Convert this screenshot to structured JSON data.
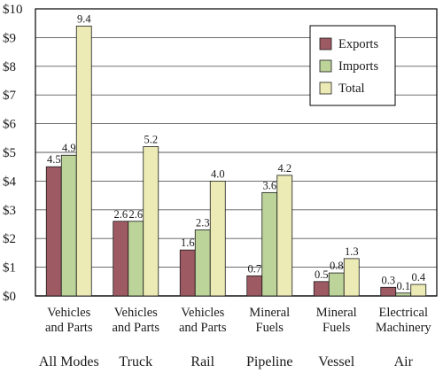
{
  "chart_data": {
    "type": "bar",
    "groups": [
      {
        "mode": "All Modes",
        "category": [
          "Vehicles",
          "and Parts"
        ]
      },
      {
        "mode": "Truck",
        "category": [
          "Vehicles",
          "and Parts"
        ]
      },
      {
        "mode": "Rail",
        "category": [
          "Vehicles",
          "and Parts"
        ]
      },
      {
        "mode": "Pipeline",
        "category": [
          "Mineral",
          "Fuels"
        ]
      },
      {
        "mode": "Vessel",
        "category": [
          "Mineral",
          "Fuels"
        ]
      },
      {
        "mode": "Air",
        "category": [
          "Electrical",
          "Machinery"
        ]
      }
    ],
    "series": [
      {
        "name": "Exports",
        "color": "#9e5a63",
        "values": [
          4.5,
          2.6,
          1.6,
          0.7,
          0.5,
          0.3
        ],
        "labels": [
          "4.5",
          "2.6",
          "1.6",
          "0.7",
          "0.5",
          "0.3"
        ]
      },
      {
        "name": "Imports",
        "color": "#bcd39a",
        "values": [
          4.9,
          2.6,
          2.3,
          3.6,
          0.8,
          0.1
        ],
        "labels": [
          "4.9",
          "2.6",
          "2.3",
          "3.6",
          "0.8",
          "0.1"
        ]
      },
      {
        "name": "Total",
        "color": "#ecebb6",
        "values": [
          9.4,
          5.2,
          4.0,
          4.2,
          1.3,
          0.4
        ],
        "labels": [
          "9.4",
          "5.2",
          "4.0",
          "4.2",
          "1.3",
          "0.4"
        ]
      }
    ],
    "y_ticks": [
      "$0",
      "$1",
      "$2",
      "$3",
      "$4",
      "$5",
      "$6",
      "$7",
      "$8",
      "$9",
      "$10"
    ],
    "ylim": [
      0,
      10
    ],
    "grid": true,
    "legend_position": "top-right"
  }
}
